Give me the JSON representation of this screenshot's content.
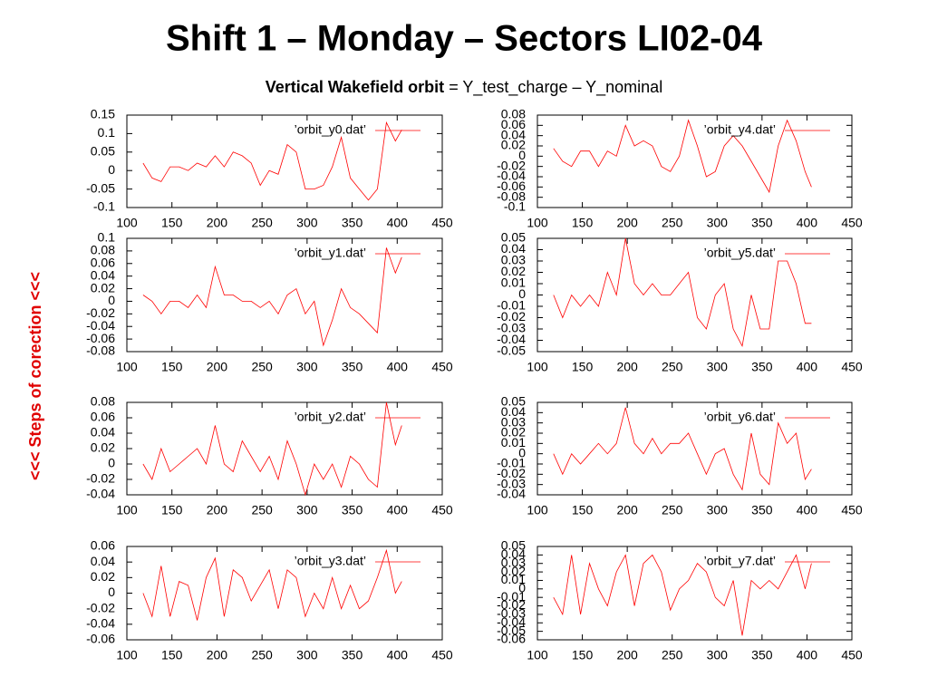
{
  "slide": {
    "title": "Shift 1 – Monday  – Sectors LI02-04",
    "subtitle_bold": "Vertical Wakefield orbit",
    "subtitle_rest": " = Y_test_charge – Y_nominal",
    "side_label": "<<<  Steps of corection <<<"
  },
  "chart_data": [
    {
      "type": "line",
      "legend": "top-right",
      "xlim": [
        100,
        450
      ],
      "xticks": [
        100,
        150,
        200,
        250,
        300,
        350,
        400,
        450
      ],
      "ylim": [
        -0.1,
        0.15
      ],
      "yticks": [
        0.15,
        0.1,
        0.05,
        0,
        -0.05,
        -0.1
      ],
      "x": [
        118,
        128,
        138,
        148,
        158,
        168,
        178,
        188,
        198,
        208,
        218,
        228,
        238,
        248,
        258,
        268,
        278,
        288,
        298,
        308,
        318,
        328,
        338,
        348,
        358,
        368,
        378,
        388,
        398,
        405
      ],
      "series": [
        {
          "name": "’orbit_y0.dat’",
          "color": "#ff0000",
          "values": [
            0.02,
            -0.02,
            -0.03,
            0.01,
            0.01,
            0.0,
            0.02,
            0.01,
            0.04,
            0.01,
            0.05,
            0.04,
            0.02,
            -0.04,
            0.0,
            -0.01,
            0.07,
            0.05,
            -0.05,
            -0.05,
            -0.04,
            0.01,
            0.09,
            -0.02,
            -0.05,
            -0.08,
            -0.05,
            0.13,
            0.08,
            0.11
          ]
        }
      ]
    },
    {
      "type": "line",
      "legend": "top-right",
      "xlim": [
        100,
        450
      ],
      "xticks": [
        100,
        150,
        200,
        250,
        300,
        350,
        400,
        450
      ],
      "ylim": [
        -0.08,
        0.1
      ],
      "yticks": [
        0.1,
        0.08,
        0.06,
        0.04,
        0.02,
        0,
        -0.02,
        -0.04,
        -0.06,
        -0.08
      ],
      "x": [
        118,
        128,
        138,
        148,
        158,
        168,
        178,
        188,
        198,
        208,
        218,
        228,
        238,
        248,
        258,
        268,
        278,
        288,
        298,
        308,
        318,
        328,
        338,
        348,
        358,
        368,
        378,
        388,
        398,
        405
      ],
      "series": [
        {
          "name": "’orbit_y1.dat’",
          "color": "#ff0000",
          "values": [
            0.01,
            0.0,
            -0.02,
            0.0,
            0.0,
            -0.01,
            0.01,
            -0.01,
            0.055,
            0.01,
            0.01,
            0.0,
            0.0,
            -0.01,
            0.0,
            -0.02,
            0.01,
            0.02,
            -0.02,
            0.0,
            -0.07,
            -0.03,
            0.02,
            -0.01,
            -0.02,
            -0.035,
            -0.05,
            0.085,
            0.045,
            0.07
          ]
        }
      ]
    },
    {
      "type": "line",
      "legend": "top-right",
      "xlim": [
        100,
        450
      ],
      "xticks": [
        100,
        150,
        200,
        250,
        300,
        350,
        400,
        450
      ],
      "ylim": [
        -0.04,
        0.08
      ],
      "yticks": [
        0.08,
        0.06,
        0.04,
        0.02,
        0,
        -0.02,
        -0.04
      ],
      "x": [
        118,
        128,
        138,
        148,
        158,
        168,
        178,
        188,
        198,
        208,
        218,
        228,
        238,
        248,
        258,
        268,
        278,
        288,
        298,
        308,
        318,
        328,
        338,
        348,
        358,
        368,
        378,
        388,
        398,
        405
      ],
      "series": [
        {
          "name": "’orbit_y2.dat’",
          "color": "#ff0000",
          "values": [
            0.0,
            -0.02,
            0.02,
            -0.01,
            0.0,
            0.01,
            0.02,
            0.0,
            0.05,
            0.0,
            -0.01,
            0.03,
            0.01,
            -0.01,
            0.01,
            -0.02,
            0.03,
            0.0,
            -0.04,
            0.0,
            -0.02,
            0.0,
            -0.03,
            0.01,
            0.0,
            -0.02,
            -0.03,
            0.08,
            0.025,
            0.05
          ]
        }
      ]
    },
    {
      "type": "line",
      "legend": "top-right",
      "xlim": [
        100,
        450
      ],
      "xticks": [
        100,
        150,
        200,
        250,
        300,
        350,
        400,
        450
      ],
      "ylim": [
        -0.06,
        0.06
      ],
      "yticks": [
        0.06,
        0.04,
        0.02,
        0,
        -0.02,
        -0.04,
        -0.06
      ],
      "x": [
        118,
        128,
        138,
        148,
        158,
        168,
        178,
        188,
        198,
        208,
        218,
        228,
        238,
        248,
        258,
        268,
        278,
        288,
        298,
        308,
        318,
        328,
        338,
        348,
        358,
        368,
        378,
        388,
        398,
        405
      ],
      "series": [
        {
          "name": "’orbit_y3.dat’",
          "color": "#ff0000",
          "values": [
            0.0,
            -0.03,
            0.035,
            -0.03,
            0.015,
            0.01,
            -0.035,
            0.02,
            0.045,
            -0.03,
            0.03,
            0.02,
            -0.01,
            0.01,
            0.03,
            -0.02,
            0.03,
            0.02,
            -0.03,
            0.0,
            -0.02,
            0.02,
            -0.02,
            0.01,
            -0.02,
            -0.01,
            0.02,
            0.055,
            0.0,
            0.015
          ]
        }
      ]
    },
    {
      "type": "line",
      "legend": "top-right",
      "xlim": [
        100,
        450
      ],
      "xticks": [
        100,
        150,
        200,
        250,
        300,
        350,
        400,
        450
      ],
      "ylim": [
        -0.1,
        0.08
      ],
      "yticks": [
        0.08,
        0.06,
        0.04,
        0.02,
        0,
        -0.02,
        -0.04,
        -0.06,
        -0.08,
        -0.1
      ],
      "x": [
        118,
        128,
        138,
        148,
        158,
        168,
        178,
        188,
        198,
        208,
        218,
        228,
        238,
        248,
        258,
        268,
        278,
        288,
        298,
        308,
        318,
        328,
        338,
        348,
        358,
        368,
        378,
        388,
        398,
        405
      ],
      "series": [
        {
          "name": "’orbit_y4.dat’",
          "color": "#ff0000",
          "values": [
            0.015,
            -0.01,
            -0.02,
            0.01,
            0.01,
            -0.02,
            0.01,
            0.0,
            0.06,
            0.02,
            0.03,
            0.02,
            -0.02,
            -0.03,
            0.0,
            0.07,
            0.02,
            -0.04,
            -0.03,
            0.02,
            0.04,
            0.02,
            -0.01,
            -0.04,
            -0.07,
            0.02,
            0.07,
            0.03,
            -0.03,
            -0.06
          ]
        }
      ]
    },
    {
      "type": "line",
      "legend": "top-right",
      "xlim": [
        100,
        450
      ],
      "xticks": [
        100,
        150,
        200,
        250,
        300,
        350,
        400,
        450
      ],
      "ylim": [
        -0.05,
        0.05
      ],
      "yticks": [
        0.05,
        0.04,
        0.03,
        0.02,
        0.01,
        0,
        -0.01,
        -0.02,
        -0.03,
        -0.04,
        -0.05
      ],
      "x": [
        118,
        128,
        138,
        148,
        158,
        168,
        178,
        188,
        198,
        208,
        218,
        228,
        238,
        248,
        258,
        268,
        278,
        288,
        298,
        308,
        318,
        328,
        338,
        348,
        358,
        368,
        378,
        388,
        398,
        405
      ],
      "series": [
        {
          "name": "’orbit_y5.dat’",
          "color": "#ff0000",
          "values": [
            0.0,
            -0.02,
            0.0,
            -0.01,
            0.0,
            -0.01,
            0.02,
            0.0,
            0.05,
            0.01,
            0.0,
            0.01,
            0.0,
            0.0,
            0.01,
            0.02,
            -0.02,
            -0.03,
            0.0,
            0.01,
            -0.03,
            -0.045,
            0.0,
            -0.03,
            -0.03,
            0.03,
            0.03,
            0.01,
            -0.025,
            -0.025
          ]
        }
      ]
    },
    {
      "type": "line",
      "legend": "top-right",
      "xlim": [
        100,
        450
      ],
      "xticks": [
        100,
        150,
        200,
        250,
        300,
        350,
        400,
        450
      ],
      "ylim": [
        -0.04,
        0.05
      ],
      "yticks": [
        0.05,
        0.04,
        0.03,
        0.02,
        0.01,
        0,
        -0.01,
        -0.02,
        -0.03,
        -0.04
      ],
      "x": [
        118,
        128,
        138,
        148,
        158,
        168,
        178,
        188,
        198,
        208,
        218,
        228,
        238,
        248,
        258,
        268,
        278,
        288,
        298,
        308,
        318,
        328,
        338,
        348,
        358,
        368,
        378,
        388,
        398,
        405
      ],
      "series": [
        {
          "name": "’orbit_y6.dat’",
          "color": "#ff0000",
          "values": [
            0.0,
            -0.02,
            0.0,
            -0.01,
            0.0,
            0.01,
            0.0,
            0.01,
            0.045,
            0.01,
            0.0,
            0.015,
            0.0,
            0.01,
            0.01,
            0.02,
            0.0,
            -0.02,
            0.0,
            0.005,
            -0.02,
            -0.035,
            0.02,
            -0.02,
            -0.03,
            0.03,
            0.01,
            0.02,
            -0.025,
            -0.015
          ]
        }
      ]
    },
    {
      "type": "line",
      "legend": "top-right",
      "xlim": [
        100,
        450
      ],
      "xticks": [
        100,
        150,
        200,
        250,
        300,
        350,
        400,
        450
      ],
      "ylim": [
        -0.06,
        0.05
      ],
      "yticks": [
        0.05,
        0.04,
        0.03,
        0.02,
        0.01,
        0,
        -0.01,
        -0.02,
        -0.03,
        -0.04,
        -0.05,
        -0.06
      ],
      "x": [
        118,
        128,
        138,
        148,
        158,
        168,
        178,
        188,
        198,
        208,
        218,
        228,
        238,
        248,
        258,
        268,
        278,
        288,
        298,
        308,
        318,
        328,
        338,
        348,
        358,
        368,
        378,
        388,
        398,
        405
      ],
      "series": [
        {
          "name": "’orbit_y7.dat’",
          "color": "#ff0000",
          "values": [
            -0.01,
            -0.03,
            0.04,
            -0.03,
            0.03,
            0.0,
            -0.02,
            0.02,
            0.04,
            -0.02,
            0.03,
            0.04,
            0.02,
            -0.025,
            0.0,
            0.01,
            0.03,
            0.02,
            -0.01,
            -0.02,
            0.01,
            -0.055,
            0.01,
            0.0,
            0.01,
            0.0,
            0.02,
            0.04,
            0.0,
            0.03
          ]
        }
      ]
    }
  ]
}
